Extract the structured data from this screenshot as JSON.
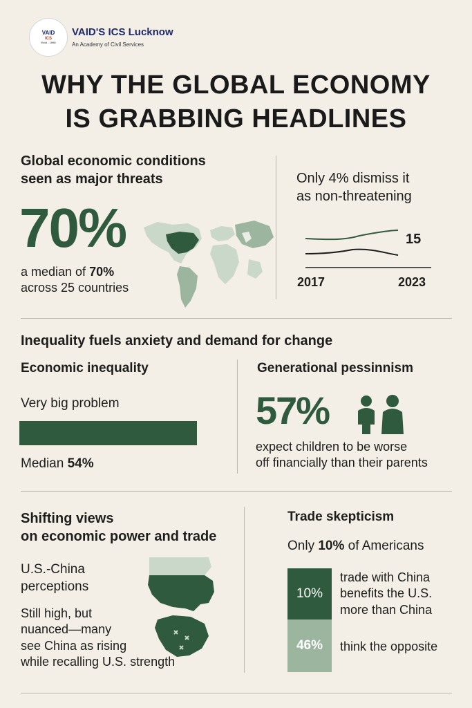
{
  "brand": {
    "logo_line1": "VAID",
    "logo_line2": "ICS",
    "logo_line3": "Estd - 1998",
    "name": "VAID'S ICS Lucknow",
    "tagline": "An Academy of Civil Services"
  },
  "title": {
    "line1": "WHY THE GLOBAL ECONOMY",
    "line2": "IS GRABBING HEADLINES"
  },
  "section1": {
    "heading_line1": "Global economic conditions",
    "heading_line2": "seen as major threats",
    "big_value": "70%",
    "caption_pre": "a median of ",
    "caption_bold": "70%",
    "caption_line2": "across 25 countries",
    "right_line1": "Only 4% dismiss it",
    "right_line2": "as non-threatening",
    "chart_value_label": "15",
    "year_start": "2017",
    "year_end": "2023"
  },
  "section2": {
    "heading": "Inequality fuels anxiety and demand for change",
    "left_heading": "Economic inequality",
    "left_sub": "Very big problem",
    "median_pre": "Median ",
    "median_bold": "54%",
    "right_heading": "Generational pessinnism",
    "big_value": "57%",
    "caption_line1": "expect children to be worse",
    "caption_line2": "off financially than their parents"
  },
  "section3": {
    "heading_line1": "Shifting views",
    "heading_line2": "on economic power and trade",
    "sub_line1": "U.S.-China",
    "sub_line2": "perceptions",
    "body_line1": "Still high, but",
    "body_line2": "nuanced—many",
    "body_line3": "see China as rising",
    "body_line4": "while recalling U.S. strength",
    "right_heading": "Trade skepticism",
    "right_sub_pre": "Only ",
    "right_sub_bold": "10%",
    "right_sub_post": " of Americans",
    "bar1_label": "10%",
    "bar1_text_line1": "trade with China",
    "bar1_text_line2": "benefits the U.S.",
    "bar1_text_line3": "more than China",
    "bar2_label": "46%",
    "bar2_text": "think the opposite"
  },
  "colors": {
    "background": "#f3efe7",
    "dark_green": "#2f5a3d",
    "light_green": "#9bb59f",
    "pale_green": "#c9d8c8"
  }
}
